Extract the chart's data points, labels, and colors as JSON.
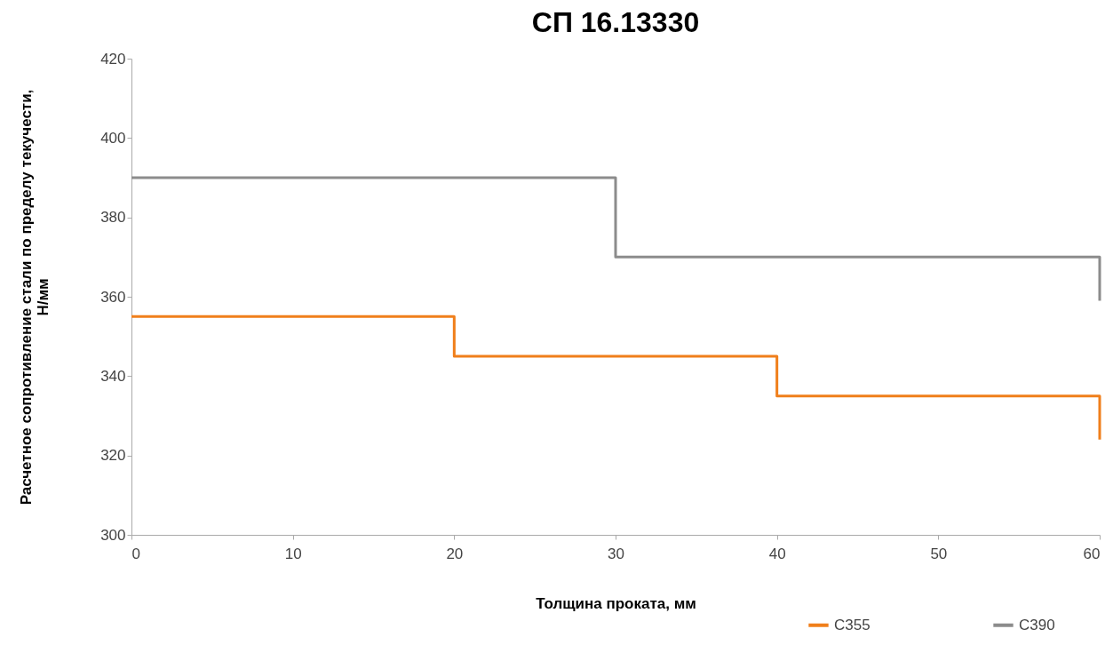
{
  "chart_data": {
    "type": "step",
    "title": "СП 16.13330",
    "xlabel": "Толщина проката, мм",
    "ylabel": "Расчетное сопротивление стали по пределу текучести,\nН/мм",
    "xlim": [
      0,
      60
    ],
    "xticks": [
      0,
      10,
      20,
      30,
      40,
      50,
      60
    ],
    "ylim": [
      300,
      420
    ],
    "yticks": [
      300,
      320,
      340,
      360,
      380,
      400,
      420
    ],
    "grid": false,
    "legend": "bottom right",
    "marker": "none",
    "line_style": "solid",
    "series": [
      {
        "name": "С355",
        "color": "#f07f1b",
        "x": [
          0,
          20,
          40,
          60,
          60
        ],
        "values": [
          355,
          345,
          335,
          335,
          324
        ]
      },
      {
        "name": "С390",
        "color": "#8c8c8c",
        "x": [
          0,
          30,
          60,
          60
        ],
        "values": [
          390,
          370,
          370,
          359
        ]
      }
    ]
  }
}
